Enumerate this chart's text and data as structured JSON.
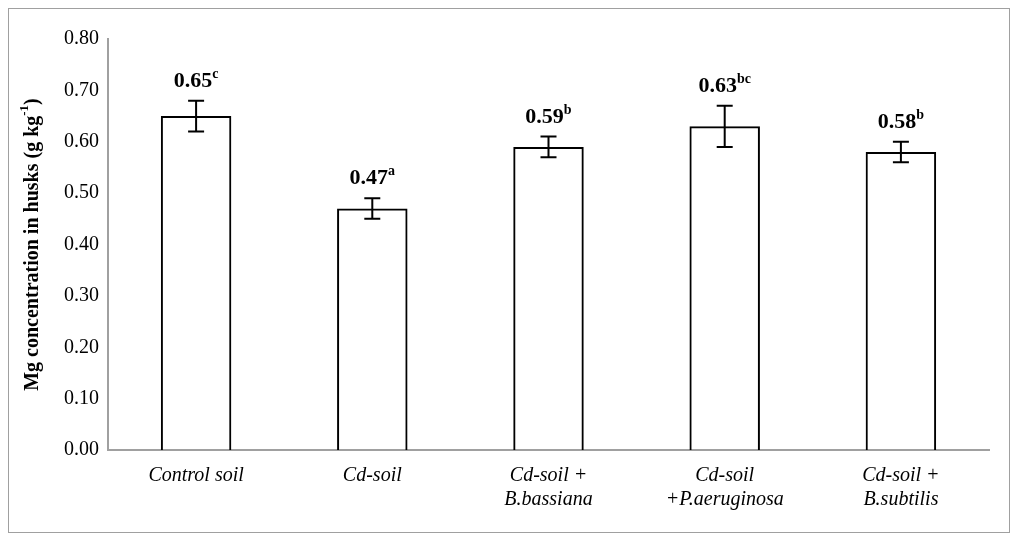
{
  "chart_data": {
    "type": "bar",
    "ylabel": "Mg concentration in husks (g kg$^{-1}$)",
    "categories": [
      "Control soil",
      "Cd-soil",
      "Cd-soil +\nB.bassiana",
      "Cd-soil\n+P.aeruginosa",
      "Cd-soil +\nB.subtilis"
    ],
    "values": [
      0.65,
      0.47,
      0.59,
      0.63,
      0.58
    ],
    "errors": [
      0.03,
      0.02,
      0.02,
      0.04,
      0.02
    ],
    "value_labels": [
      "0.65$^{c}$",
      "0.47$^{a}$",
      "0.59$^{b}$",
      "0.63$^{bc}$",
      "0.58$^{b}$"
    ],
    "color": "#000000",
    "ylim": [
      0,
      0.8
    ],
    "yticks": [
      {
        "value": 0,
        "label": "0.00"
      },
      {
        "value": 0.1,
        "label": "0.10"
      },
      {
        "value": 0.2,
        "label": "0.20"
      },
      {
        "value": 0.3,
        "label": "0.30"
      },
      {
        "value": 0.4,
        "label": "0.40"
      },
      {
        "value": 0.5,
        "label": "0.50"
      },
      {
        "value": 0.6,
        "label": "0.60"
      },
      {
        "value": 0.7,
        "label": "0.70"
      },
      {
        "value": 0.8,
        "label": "0.80"
      }
    ],
    "grid": false,
    "legend": false
  }
}
